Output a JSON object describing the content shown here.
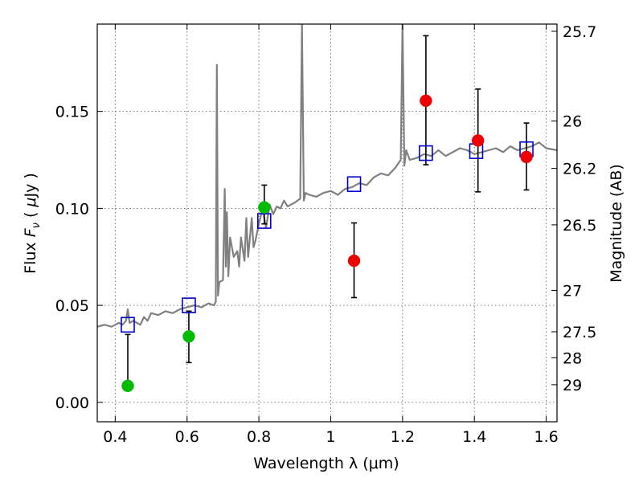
{
  "chart_data": {
    "type": "scatter",
    "xlabel": "Wavelength  λ (μm)",
    "ylabel_parts": [
      "Flux ",
      "F",
      "ν",
      " ( ",
      "μ",
      "Jy )"
    ],
    "ylabel_right": "Magnitude (AB)",
    "xlim": [
      0.35,
      1.63
    ],
    "ylim": [
      -0.01,
      0.195
    ],
    "x_ticks": [
      0.4,
      0.6,
      0.8,
      1.0,
      1.2,
      1.4,
      1.6
    ],
    "x_tick_labels": [
      "0.4",
      "0.6",
      "0.8",
      "1",
      "1.2",
      "1.4",
      "1.6"
    ],
    "y_ticks": [
      0.0,
      0.05,
      0.1,
      0.15
    ],
    "y_tick_labels": [
      "0.00",
      "0.05",
      "0.10",
      "0.15"
    ],
    "right_ticks": [
      {
        "label": "25.7",
        "flux": 0.1913
      },
      {
        "label": "26",
        "flux": 0.145
      },
      {
        "label": "26.2",
        "flux": 0.1206
      },
      {
        "label": "26.5",
        "flux": 0.0915
      },
      {
        "label": "27",
        "flux": 0.0577
      },
      {
        "label": "27.5",
        "flux": 0.0364
      },
      {
        "label": "28",
        "flux": 0.023
      },
      {
        "label": "29",
        "flux": 0.0091
      }
    ],
    "grid": true,
    "colors": {
      "spectrum": "#808080",
      "green_points": "#00bb00",
      "red_points": "#ee0000",
      "model_squares": "#0000cc",
      "errorbars": "#000000"
    },
    "series": [
      {
        "kind": "spectrum",
        "x": [
          0.35,
          0.37,
          0.39,
          0.41,
          0.42,
          0.43,
          0.435,
          0.44,
          0.45,
          0.47,
          0.48,
          0.49,
          0.5,
          0.52,
          0.54,
          0.56,
          0.58,
          0.6,
          0.62,
          0.64,
          0.66,
          0.675,
          0.68,
          0.683,
          0.686,
          0.69,
          0.7,
          0.705,
          0.708,
          0.711,
          0.715,
          0.72,
          0.73,
          0.74,
          0.745,
          0.75,
          0.76,
          0.765,
          0.77,
          0.78,
          0.785,
          0.79,
          0.8,
          0.81,
          0.82,
          0.83,
          0.84,
          0.85,
          0.86,
          0.87,
          0.88,
          0.9,
          0.915,
          0.92,
          0.925,
          0.93,
          0.94,
          0.96,
          0.98,
          1.0,
          1.02,
          1.04,
          1.06,
          1.08,
          1.1,
          1.12,
          1.14,
          1.16,
          1.18,
          1.195,
          1.2,
          1.205,
          1.21,
          1.22,
          1.24,
          1.26,
          1.28,
          1.3,
          1.32,
          1.34,
          1.36,
          1.38,
          1.4,
          1.42,
          1.44,
          1.46,
          1.48,
          1.5,
          1.52,
          1.54,
          1.56,
          1.58,
          1.6,
          1.63
        ],
        "y": [
          0.039,
          0.04,
          0.039,
          0.041,
          0.04,
          0.042,
          0.048,
          0.041,
          0.042,
          0.04,
          0.044,
          0.042,
          0.046,
          0.045,
          0.047,
          0.046,
          0.048,
          0.049,
          0.05,
          0.049,
          0.051,
          0.05,
          0.052,
          0.174,
          0.055,
          0.062,
          0.063,
          0.11,
          0.07,
          0.098,
          0.065,
          0.085,
          0.075,
          0.078,
          0.07,
          0.085,
          0.073,
          0.095,
          0.075,
          0.095,
          0.08,
          0.083,
          0.092,
          0.1,
          0.09,
          0.102,
          0.097,
          0.101,
          0.1,
          0.104,
          0.101,
          0.103,
          0.105,
          0.195,
          0.104,
          0.108,
          0.107,
          0.106,
          0.108,
          0.109,
          0.107,
          0.11,
          0.111,
          0.113,
          0.112,
          0.116,
          0.118,
          0.117,
          0.121,
          0.125,
          0.195,
          0.122,
          0.13,
          0.125,
          0.126,
          0.128,
          0.127,
          0.13,
          0.127,
          0.129,
          0.131,
          0.13,
          0.128,
          0.129,
          0.13,
          0.131,
          0.129,
          0.132,
          0.13,
          0.131,
          0.132,
          0.134,
          0.131,
          0.13
        ]
      },
      {
        "kind": "points",
        "color": "green",
        "x": [
          0.435,
          0.605,
          0.815
        ],
        "y": [
          0.0085,
          0.034,
          0.1005
        ],
        "yerr_low": [
          0.0085,
          0.0205,
          0.092
        ],
        "yerr_high": [
          0.035,
          0.047,
          0.112
        ]
      },
      {
        "kind": "points",
        "color": "red",
        "x": [
          1.065,
          1.265,
          1.41,
          1.545
        ],
        "y": [
          0.073,
          0.1555,
          0.135,
          0.1265
        ],
        "yerr_low": [
          0.054,
          0.1225,
          0.1085,
          0.1095
        ],
        "yerr_high": [
          0.0925,
          0.189,
          0.1615,
          0.144
        ]
      },
      {
        "kind": "squares",
        "color": "blue",
        "x": [
          0.435,
          0.605,
          0.815,
          1.065,
          1.265,
          1.405,
          1.545
        ],
        "y": [
          0.04,
          0.05,
          0.0935,
          0.1125,
          0.1285,
          0.1295,
          0.1305
        ]
      }
    ]
  }
}
